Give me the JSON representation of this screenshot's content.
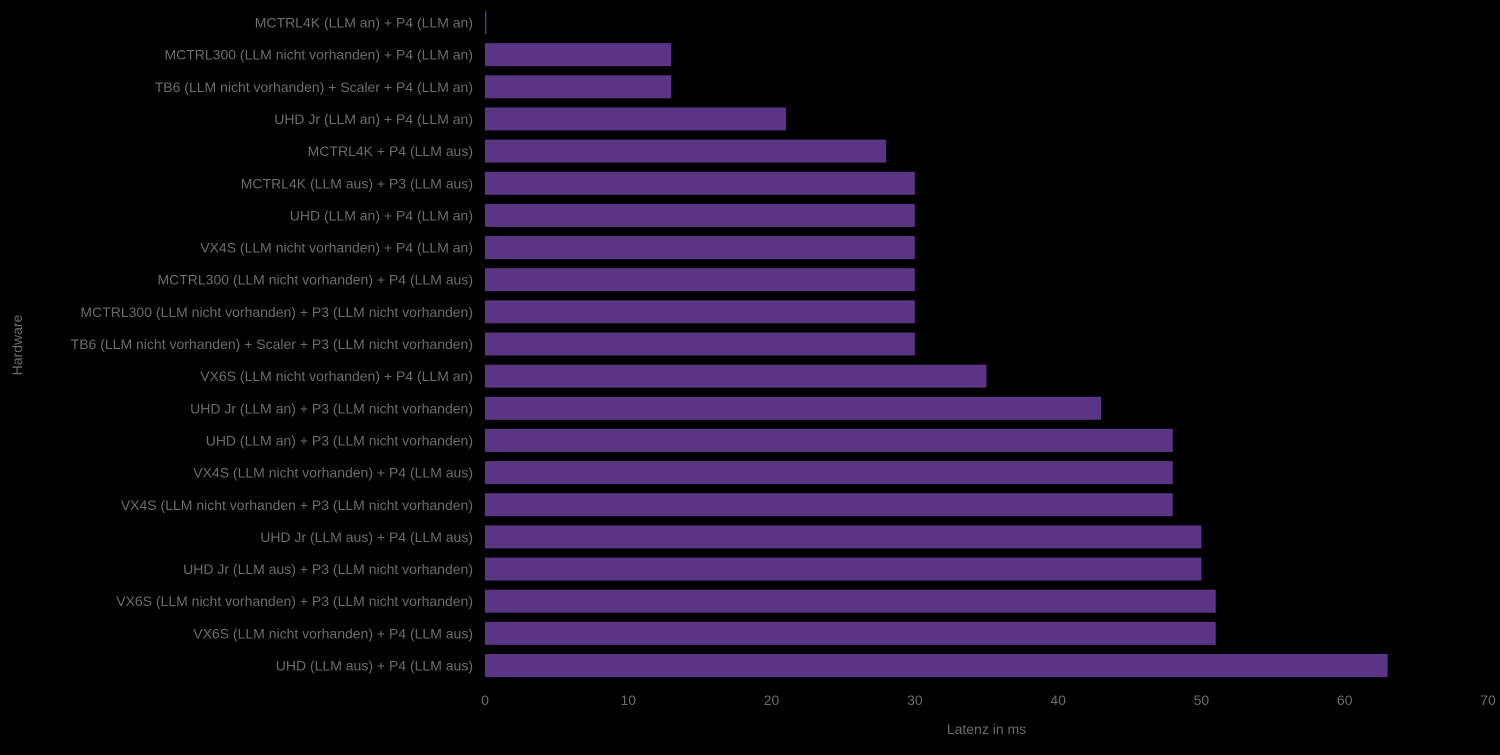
{
  "chart_data": {
    "type": "bar",
    "orientation": "horizontal",
    "title": "",
    "xlabel": "Latenz in ms",
    "ylabel": "Hardware",
    "xlim": [
      0,
      70
    ],
    "x_ticks": [
      "0",
      "10",
      "20",
      "30",
      "40",
      "50",
      "60",
      "70"
    ],
    "grid": false,
    "legend": "none",
    "colors": {
      "background": "#000000",
      "bar": "#5a3585",
      "text": "#6b6b6b"
    },
    "categories": [
      "MCTRL4K (LLM an) + P4 (LLM an)",
      "MCTRL300 (LLM nicht vorhanden) + P4 (LLM an)",
      "TB6 (LLM nicht vorhanden) + Scaler + P4 (LLM an)",
      "UHD Jr (LLM an) + P4 (LLM an)",
      "MCTRL4K + P4 (LLM aus)",
      "MCTRL4K (LLM aus) + P3 (LLM aus)",
      "UHD (LLM an) + P4 (LLM an)",
      "VX4S (LLM nicht vorhanden) + P4 (LLM an)",
      "MCTRL300 (LLM nicht vorhanden) + P4 (LLM aus)",
      "MCTRL300 (LLM nicht vorhanden) + P3 (LLM nicht vorhanden)",
      "TB6 (LLM nicht vorhanden) + Scaler + P3 (LLM nicht vorhanden)",
      "VX6S (LLM nicht vorhanden) + P4 (LLM an)",
      "UHD Jr (LLM an) + P3 (LLM nicht vorhanden)",
      "UHD (LLM an) + P3 (LLM nicht vorhanden)",
      "VX4S (LLM nicht vorhanden) + P4 (LLM aus)",
      "VX4S (LLM nicht vorhanden + P3 (LLM nicht vorhanden)",
      "UHD Jr (LLM aus) + P4 (LLM aus)",
      "UHD Jr (LLM aus) + P3 (LLM nicht vorhanden)",
      "VX6S (LLM nicht vorhanden) + P3 (LLM nicht vorhanden)",
      "VX6S (LLM nicht vorhanden) + P4 (LLM aus)",
      "UHD (LLM aus) + P4 (LLM aus)"
    ],
    "values": [
      0.1,
      13,
      13,
      21,
      28,
      30,
      30,
      30,
      30,
      30,
      30,
      35,
      43,
      48,
      48,
      48,
      50,
      50,
      51,
      51,
      63
    ]
  }
}
